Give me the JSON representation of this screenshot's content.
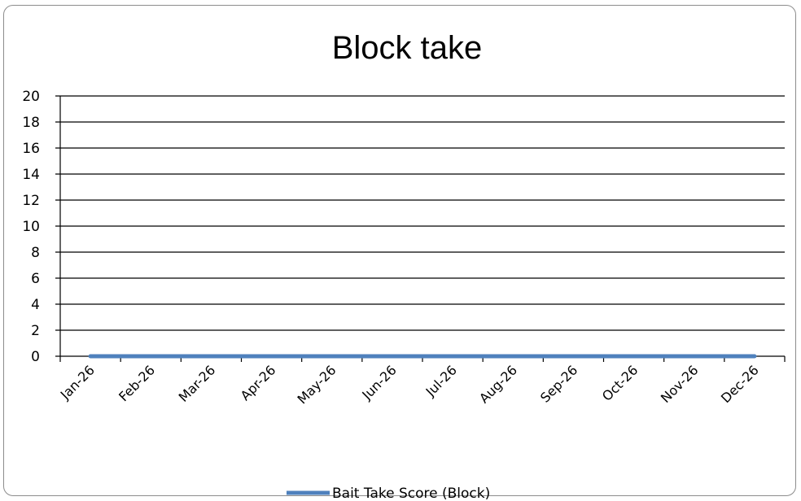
{
  "chart_data": {
    "type": "line",
    "title": "Block take",
    "xlabel": "",
    "ylabel": "",
    "categories": [
      "Jan-26",
      "Feb-26",
      "Mar-26",
      "Apr-26",
      "May-26",
      "Jun-26",
      "Jul-26",
      "Aug-26",
      "Sep-26",
      "Oct-26",
      "Nov-26",
      "Dec-26"
    ],
    "ylim": [
      0,
      20
    ],
    "yticks": [
      0,
      2,
      4,
      6,
      8,
      10,
      12,
      14,
      16,
      18,
      20
    ],
    "grid": true,
    "legend_position": "bottom",
    "series": [
      {
        "name": "Bait Take Score (Block)",
        "color": "#4f81bd",
        "values": [
          0,
          0,
          0,
          0,
          0,
          0,
          0,
          0,
          0,
          0,
          0,
          0
        ]
      }
    ]
  }
}
